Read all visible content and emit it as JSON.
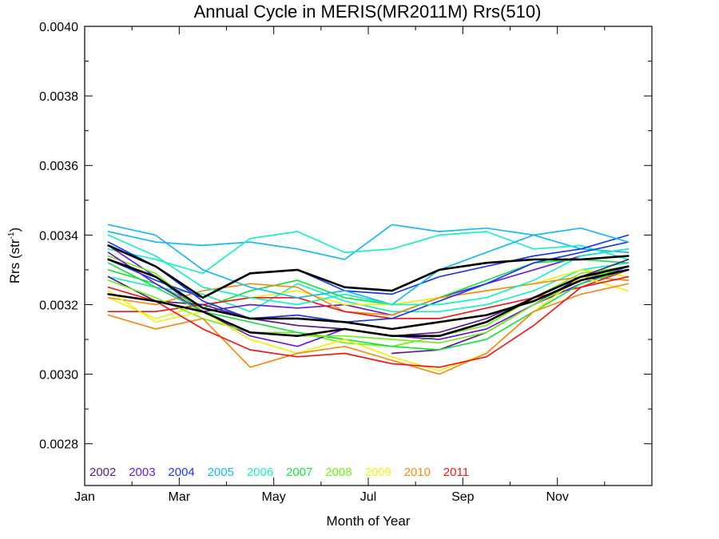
{
  "chart_data": {
    "type": "line",
    "title": "Annual Cycle in MERIS(MR2011M) Rrs(510)",
    "xlabel": "Month of Year",
    "ylabel_main": "Rrs (str",
    "ylabel_sup": "-1",
    "ylabel_close": ")",
    "xlim": [
      1,
      13
    ],
    "ylim": [
      0.00268,
      0.004
    ],
    "x_ticks": [
      {
        "value": 1,
        "label": "Jan"
      },
      {
        "value": 3,
        "label": "Mar"
      },
      {
        "value": 5,
        "label": "May"
      },
      {
        "value": 7,
        "label": "Jul"
      },
      {
        "value": 9,
        "label": "Sep"
      },
      {
        "value": 11,
        "label": "Nov"
      }
    ],
    "y_ticks": [
      {
        "value": 0.0028,
        "label": "0.0028"
      },
      {
        "value": 0.003,
        "label": "0.0030"
      },
      {
        "value": 0.0032,
        "label": "0.0032"
      },
      {
        "value": 0.0034,
        "label": "0.0034"
      },
      {
        "value": 0.0036,
        "label": "0.0036"
      },
      {
        "value": 0.0038,
        "label": "0.0038"
      },
      {
        "value": 0.004,
        "label": "0.0040"
      }
    ],
    "grid": false,
    "legend_position": "bottom-left",
    "x": [
      1.5,
      2.5,
      3.5,
      4.5,
      5.5,
      6.5,
      7.5,
      8.5,
      9.5,
      10.5,
      11.5,
      12.5
    ],
    "series": [
      {
        "name": "2002",
        "color": "#5a1a8c",
        "values": [
          0.00328,
          0.00321,
          0.0032,
          0.00316,
          0.00314,
          0.00313,
          0.00311,
          0.00312,
          0.00316,
          0.00322,
          0.00328,
          0.00333
        ]
      },
      {
        "name": "2003",
        "color": "#6a1ad8",
        "values": [
          0.00335,
          0.00326,
          0.00318,
          0.00311,
          0.00308,
          0.00313,
          0.00311,
          0.0031,
          0.00313,
          0.0032,
          0.00326,
          0.00331
        ]
      },
      {
        "name": "2004",
        "color": "#1a3ae8",
        "values": [
          0.00338,
          0.00331,
          0.00321,
          0.00316,
          0.00317,
          0.00315,
          0.00316,
          0.00321,
          0.00326,
          0.00332,
          0.00335,
          0.00338
        ]
      },
      {
        "name": "2005",
        "color": "#18b8f0",
        "values": [
          0.00343,
          0.0034,
          0.0033,
          0.00325,
          0.00322,
          0.00324,
          0.0032,
          0.0033,
          0.00335,
          0.0034,
          0.00342,
          0.00338
        ]
      },
      {
        "name": "2006",
        "color": "#18f0c0",
        "values": [
          0.0034,
          0.00334,
          0.00325,
          0.00322,
          0.0032,
          0.00323,
          0.0032,
          0.0032,
          0.00322,
          0.00327,
          0.00334,
          0.00336
        ]
      },
      {
        "name": "2007",
        "color": "#18e040",
        "values": [
          0.00332,
          0.00325,
          0.00318,
          0.00315,
          0.00312,
          0.0031,
          0.00308,
          0.00307,
          0.0031,
          0.00318,
          0.00326,
          0.0033
        ]
      },
      {
        "name": "2008",
        "color": "#70f018",
        "values": [
          0.00327,
          0.00322,
          0.00316,
          0.00312,
          0.00311,
          0.00311,
          0.0031,
          0.00309,
          0.00312,
          0.0032,
          0.00327,
          0.00331
        ]
      },
      {
        "name": "2009",
        "color": "#f0f018",
        "values": [
          0.00324,
          0.00315,
          0.00318,
          0.0031,
          0.00306,
          0.0031,
          0.00305,
          0.00301,
          0.00306,
          0.00318,
          0.00328,
          0.00324
        ]
      },
      {
        "name": "2010",
        "color": "#f08c18",
        "values": [
          0.00317,
          0.00313,
          0.00316,
          0.00302,
          0.00306,
          0.00308,
          0.00304,
          0.003,
          0.00306,
          0.00318,
          0.00323,
          0.00326
        ]
      },
      {
        "name": "2011",
        "color": "#ee1818",
        "values": [
          0.00325,
          0.00321,
          0.00313,
          0.00307,
          0.00305,
          0.00306,
          0.00303,
          0.00302,
          0.00305,
          0.00314,
          0.00325,
          0.00328
        ]
      }
    ],
    "extra_series": [
      {
        "color": "#18b8f0",
        "values": [
          0.00341,
          0.00338,
          0.00337,
          0.00338,
          0.00336,
          0.00333,
          0.00343,
          0.00341,
          0.00342,
          0.0034,
          0.00336,
          0.00335
        ]
      },
      {
        "color": "#18f0c0",
        "values": [
          0.00336,
          0.00333,
          0.00329,
          0.00339,
          0.00341,
          0.00335,
          0.00336,
          0.0034,
          0.00341,
          0.00336,
          0.00337,
          0.00333
        ]
      },
      {
        "color": "#18f0c0",
        "values": [
          0.00328,
          0.00325,
          0.00323,
          0.00318,
          0.00326,
          0.00321,
          0.00318,
          0.00318,
          0.0032,
          0.00324,
          0.0033,
          0.00332
        ]
      },
      {
        "color": "#1a3ae8",
        "values": [
          0.00333,
          0.00327,
          0.00322,
          0.00329,
          0.0033,
          0.00324,
          0.00323,
          0.00328,
          0.00331,
          0.00334,
          0.00336,
          0.0034
        ]
      },
      {
        "color": "#6a1ad8",
        "values": [
          0.00337,
          0.00328,
          0.00318,
          0.0032,
          0.00319,
          0.0032,
          0.00317,
          0.00322,
          0.00326,
          0.0033,
          0.00334,
          0.00336
        ]
      },
      {
        "color": "#5a1a8c",
        "values": [
          null,
          null,
          null,
          null,
          null,
          null,
          0.00306,
          0.00307,
          0.00312,
          0.0032,
          0.00328,
          0.0033
        ]
      },
      {
        "color": "#18e040",
        "values": [
          0.0033,
          0.00326,
          0.00319,
          0.00324,
          0.00327,
          0.00322,
          0.0032,
          0.00322,
          0.00327,
          0.00332,
          0.00333,
          0.00332
        ]
      },
      {
        "color": "#70f018",
        "values": [
          0.00334,
          0.00329,
          0.00318,
          0.00312,
          0.00312,
          0.00309,
          0.00308,
          0.00311,
          0.00314,
          0.00322,
          0.00329,
          0.00331
        ]
      },
      {
        "color": "#f0f018",
        "values": [
          0.00322,
          0.00316,
          0.0032,
          0.00322,
          0.00324,
          0.0032,
          0.0032,
          0.00322,
          0.00324,
          0.00326,
          0.0033,
          0.00328
        ]
      },
      {
        "color": "#f08c18",
        "values": [
          0.00322,
          0.0032,
          0.00324,
          0.00326,
          0.00325,
          0.00318,
          0.00317,
          0.00322,
          0.00324,
          0.00326,
          0.00328,
          0.00327
        ]
      },
      {
        "color": "#ee1818",
        "values": [
          0.00318,
          0.00318,
          0.0032,
          0.00322,
          0.00322,
          0.00318,
          0.00316,
          0.00316,
          0.00319,
          0.00322,
          0.00325,
          0.0033
        ]
      }
    ],
    "mean_series": [
      {
        "color": "#000000",
        "values": [
          0.00337,
          0.00331,
          0.00322,
          0.00329,
          0.0033,
          0.00325,
          0.00324,
          0.0033,
          0.00332,
          0.00333,
          0.00333,
          0.00334
        ]
      },
      {
        "color": "#000000",
        "values": [
          0.00333,
          0.00328,
          0.00319,
          0.00316,
          0.00316,
          0.00315,
          0.00313,
          0.00315,
          0.00317,
          0.00321,
          0.00327,
          0.0033
        ]
      },
      {
        "color": "#000000",
        "values": [
          0.00323,
          0.00321,
          0.00318,
          0.00312,
          0.00311,
          0.00313,
          0.00311,
          0.00311,
          0.00315,
          0.00322,
          0.00328,
          0.00331
        ]
      }
    ]
  }
}
